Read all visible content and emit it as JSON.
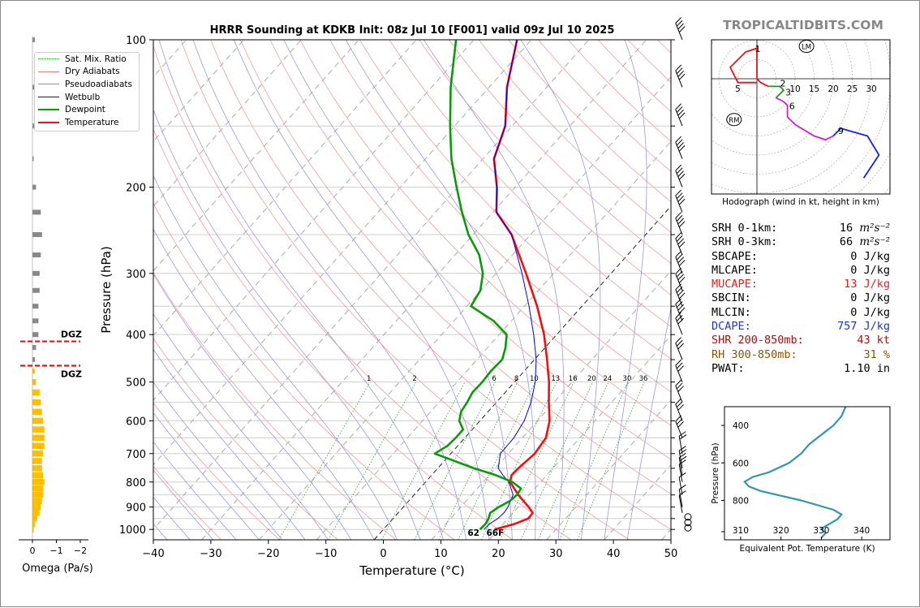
{
  "page": {
    "brand": "TROPICALTIDBITS.COM"
  },
  "chart_data": [
    {
      "type": "line",
      "subtype": "skew-t log-p sounding",
      "title": "HRRR Sounding at KDKB Init: 08z Jul 10 [F001] valid 09z Jul 10 2025",
      "xlabel": "Temperature (°C)",
      "ylabel": "Pressure (hPa)",
      "xlim": [
        -40,
        50
      ],
      "ylim": [
        1050,
        100
      ],
      "yscale": "log",
      "x_ticks": [
        -40,
        -30,
        -20,
        -10,
        0,
        10,
        20,
        30,
        40,
        50
      ],
      "y_ticks": [
        100,
        200,
        300,
        400,
        500,
        600,
        700,
        800,
        900,
        1000
      ],
      "mixing_ratio_labels": [
        "1",
        "2",
        "6",
        "8",
        "10",
        "13",
        "16",
        "20",
        "24",
        "30",
        "36"
      ],
      "surface_labels": {
        "dewpoint": "62",
        "temperature": "66F"
      },
      "legend": [
        {
          "name": "Sat. Mix. Ratio",
          "color": "#2ca02c",
          "style": "dotted"
        },
        {
          "name": "Dry Adiabats",
          "color": "#e08080",
          "style": "solid"
        },
        {
          "name": "Pseudoadiabats",
          "color": "#8a8acf",
          "style": "solid"
        },
        {
          "name": "Wetbulb",
          "color": "#0000ee",
          "style": "solid"
        },
        {
          "name": "Dewpoint",
          "color": "#0a9a0a",
          "style": "solid"
        },
        {
          "name": "Temperature",
          "color": "#ee1111",
          "style": "solid"
        }
      ],
      "series": [
        {
          "name": "Temperature",
          "color": "#ee1111",
          "points": [
            [
              1000,
              19.3
            ],
            [
              975,
              21.9
            ],
            [
              950,
              23.5
            ],
            [
              925,
              23.4
            ],
            [
              900,
              21.8
            ],
            [
              850,
              18.1
            ],
            [
              800,
              14.7
            ],
            [
              775,
              13.9
            ],
            [
              750,
              14.0
            ],
            [
              700,
              14.6
            ],
            [
              650,
              14.1
            ],
            [
              600,
              12.1
            ],
            [
              550,
              9.1
            ],
            [
              500,
              6.0
            ],
            [
              450,
              2.2
            ],
            [
              400,
              -2.2
            ],
            [
              350,
              -7.8
            ],
            [
              300,
              -14.8
            ],
            [
              250,
              -23.3
            ],
            [
              225,
              -29.4
            ],
            [
              200,
              -33.2
            ],
            [
              175,
              -38.1
            ],
            [
              150,
              -41.2
            ],
            [
              125,
              -46.9
            ],
            [
              100,
              -52.5
            ]
          ]
        },
        {
          "name": "Wetbulb",
          "color": "#0000ee",
          "points": [
            [
              1000,
              17.5
            ],
            [
              975,
              17.6
            ],
            [
              950,
              18.2
            ],
            [
              925,
              18.4
            ],
            [
              900,
              18.2
            ],
            [
              850,
              17.2
            ],
            [
              800,
              14.5
            ],
            [
              775,
              12.4
            ],
            [
              750,
              10.5
            ],
            [
              700,
              8.6
            ],
            [
              650,
              8.5
            ],
            [
              600,
              7.7
            ],
            [
              550,
              6.0
            ],
            [
              500,
              3.6
            ],
            [
              450,
              0.3
            ],
            [
              400,
              -4.0
            ],
            [
              350,
              -9.2
            ],
            [
              300,
              -15.5
            ],
            [
              250,
              -23.3
            ],
            [
              225,
              -29.4
            ],
            [
              200,
              -33.2
            ],
            [
              175,
              -38.1
            ],
            [
              150,
              -41.2
            ],
            [
              125,
              -46.9
            ],
            [
              100,
              -52.5
            ]
          ]
        },
        {
          "name": "Dewpoint",
          "color": "#0a9a0a",
          "points": [
            [
              1000,
              16.8
            ],
            [
              975,
              16.9
            ],
            [
              950,
              16.6
            ],
            [
              925,
              16.0
            ],
            [
              900,
              16.6
            ],
            [
              875,
              17.6
            ],
            [
              850,
              17.9
            ],
            [
              825,
              17.6
            ],
            [
              800,
              15.1
            ],
            [
              775,
              11.2
            ],
            [
              750,
              6.3
            ],
            [
              700,
              -2.8
            ],
            [
              675,
              -1.8
            ],
            [
              650,
              -1.6
            ],
            [
              625,
              -1.6
            ],
            [
              600,
              -3.6
            ],
            [
              575,
              -4.7
            ],
            [
              550,
              -5.1
            ],
            [
              525,
              -5.7
            ],
            [
              500,
              -5.6
            ],
            [
              475,
              -5.8
            ],
            [
              450,
              -5.6
            ],
            [
              425,
              -6.9
            ],
            [
              400,
              -8.7
            ],
            [
              375,
              -13.1
            ],
            [
              350,
              -19.3
            ],
            [
              325,
              -20.1
            ],
            [
              300,
              -22.3
            ],
            [
              275,
              -25.8
            ],
            [
              250,
              -30.8
            ],
            [
              225,
              -35.4
            ],
            [
              200,
              -40.2
            ],
            [
              175,
              -45.5
            ],
            [
              150,
              -50.8
            ],
            [
              125,
              -56.7
            ],
            [
              100,
              -63.1
            ]
          ]
        }
      ],
      "wind_barbs_levels": [
        1000,
        975,
        950,
        925,
        900,
        850,
        800,
        775,
        750,
        700,
        650,
        600,
        550,
        500,
        450,
        400,
        375,
        350,
        325,
        300,
        275,
        250,
        225,
        200,
        175,
        150,
        125,
        100
      ]
    },
    {
      "type": "bar",
      "subtype": "omega profile",
      "xlabel": "Omega (Pa/s)",
      "x_ticks": [
        "0",
        "−1",
        "−2"
      ],
      "xlim": [
        0.3,
        -2.5
      ],
      "annotations": [
        "DGZ",
        "DGZ"
      ],
      "dgz_range_hpa": [
        413,
        463
      ],
      "levels_hpa": [
        100,
        125,
        150,
        175,
        200,
        225,
        250,
        275,
        300,
        325,
        350,
        375,
        400,
        425,
        450,
        475,
        500,
        525,
        550,
        575,
        600,
        625,
        650,
        675,
        700,
        725,
        750,
        775,
        800,
        825,
        850,
        875,
        900,
        925,
        950,
        975,
        1000
      ],
      "values": [
        -0.1,
        -0.1,
        -0.1,
        -0.05,
        -0.15,
        -0.35,
        -0.4,
        -0.35,
        -0.3,
        -0.3,
        -0.25,
        -0.25,
        -0.25,
        -0.15,
        -0.1,
        -0.1,
        -0.15,
        -0.3,
        -0.35,
        -0.4,
        -0.45,
        -0.5,
        -0.5,
        -0.5,
        -0.45,
        -0.4,
        -0.4,
        -0.45,
        -0.5,
        -0.45,
        -0.45,
        -0.4,
        -0.35,
        -0.3,
        -0.2,
        -0.1,
        -0.05
      ],
      "colors": {
        "negative_upper": "#888888",
        "negative_lower": "#ffbf00"
      }
    },
    {
      "type": "line",
      "subtype": "hodograph",
      "caption": "Hodograph (wind in kt, height in km)",
      "ring_labels": [
        "5",
        "10",
        "15",
        "20",
        "25",
        "30"
      ],
      "markers": [
        "LM",
        "RM"
      ],
      "height_labels": [
        "1",
        "2",
        "3",
        "6",
        "9"
      ],
      "points_kt": [
        [
          0,
          -1
        ],
        [
          -5,
          -1
        ],
        [
          -7,
          3
        ],
        [
          -3,
          7
        ],
        [
          0,
          8
        ],
        [
          0,
          5
        ],
        [
          0,
          0
        ],
        [
          1,
          -1
        ],
        [
          3,
          -2
        ],
        [
          6,
          -2
        ],
        [
          7,
          -3
        ],
        [
          5,
          -5
        ],
        [
          7,
          -6
        ],
        [
          8,
          -7
        ],
        [
          8,
          -10
        ],
        [
          10,
          -12
        ],
        [
          15,
          -15
        ],
        [
          18,
          -16
        ],
        [
          20,
          -15
        ],
        [
          22,
          -13
        ],
        [
          29,
          -15
        ],
        [
          32,
          -20
        ],
        [
          28,
          -26
        ]
      ]
    },
    {
      "type": "line",
      "subtype": "theta-e profile",
      "xlabel": "Equivalent Pot. Temperature (K)",
      "ylabel": "Pressure (hPa)",
      "xlim": [
        306,
        347
      ],
      "ylim": [
        1010,
        300
      ],
      "x_ticks": [
        310,
        320,
        330,
        340
      ],
      "y_ticks": [
        400,
        600,
        800
      ],
      "series": [
        {
          "color": "#3399aa",
          "points": [
            [
              1000,
              330
            ],
            [
              975,
              331
            ],
            [
              950,
              330
            ],
            [
              925,
              332
            ],
            [
              900,
              334
            ],
            [
              875,
              335
            ],
            [
              850,
              333
            ],
            [
              800,
              325
            ],
            [
              750,
              315
            ],
            [
              725,
              312
            ],
            [
              700,
              311
            ],
            [
              675,
              313
            ],
            [
              650,
              317
            ],
            [
              600,
              322
            ],
            [
              550,
              325
            ],
            [
              500,
              327
            ],
            [
              450,
              330
            ],
            [
              400,
              333
            ],
            [
              350,
              335
            ],
            [
              300,
              336
            ]
          ]
        }
      ]
    }
  ],
  "params": [
    {
      "label": "SRH 0-1km:",
      "value": "16",
      "unit": "m²s⁻²",
      "color": "#000000"
    },
    {
      "label": "SRH 0-3km:",
      "value": "66",
      "unit": "m²s⁻²",
      "color": "#000000"
    },
    {
      "label": "SBCAPE:",
      "value": "0 J/kg",
      "color": "#000000"
    },
    {
      "label": "MLCAPE:",
      "value": "0 J/kg",
      "color": "#000000"
    },
    {
      "label": "MUCAPE:",
      "value": "13 J/kg",
      "color": "#dd2222"
    },
    {
      "label": "SBCIN:",
      "value": "0 J/kg",
      "color": "#000000"
    },
    {
      "label": "MLCIN:",
      "value": "0 J/kg",
      "color": "#000000"
    },
    {
      "label": "DCAPE:",
      "value": "757 J/kg",
      "color": "#2233cc"
    },
    {
      "label": "SHR 200-850mb:",
      "value": "43 kt",
      "color": "#aa1111"
    },
    {
      "label": "RH 300-850mb:",
      "value": "31 %",
      "color": "#885500"
    },
    {
      "label": "PWAT:",
      "value": "1.10 in",
      "color": "#000000"
    }
  ]
}
